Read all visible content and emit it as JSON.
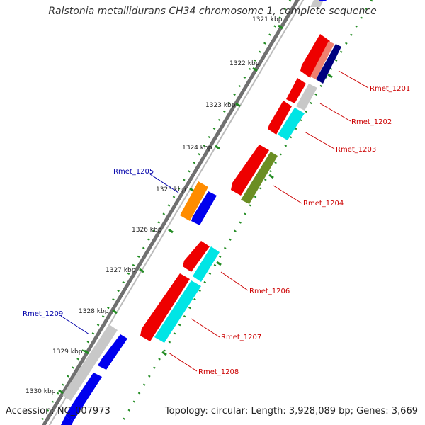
{
  "title": "Ralstonia metallidurans CH34 chromosome 1, complete sequence",
  "accession": "Accession: NC_007973",
  "summary": "Topology: circular; Length: 3,928,089 bp; Genes: 3,669",
  "ticks": [
    "1321 kbp",
    "1322 kbp",
    "1323 kbp",
    "1324 kbp",
    "1325 kbp",
    "1326 kbp",
    "1327 kbp",
    "1328 kbp",
    "1329 kbp",
    "1330 kbp"
  ],
  "gene_labels": {
    "rmet_1201": "Rmet_1201",
    "rmet_1202": "Rmet_1202",
    "rmet_1203": "Rmet_1203",
    "rmet_1204": "Rmet_1204",
    "rmet_1205": "Rmet_1205",
    "rmet_1206": "Rmet_1206",
    "rmet_1207": "Rmet_1207",
    "rmet_1208": "Rmet_1208",
    "rmet_1209": "Rmet_1209"
  },
  "colors": {
    "forward_cds": "#0000ee",
    "reverse_cds": "#ee0000",
    "cyan_feature": "#00e5e5",
    "gray_feature": "#c8c8c8",
    "orange_feature": "#ff8c00",
    "olive_feature": "#6b8e23",
    "navy_feature": "#00007f",
    "salmon_feature": "#f08070",
    "backbone": "#888888",
    "tick": "#228b22",
    "label_forward": "#0000aa",
    "label_reverse": "#cc0000"
  }
}
